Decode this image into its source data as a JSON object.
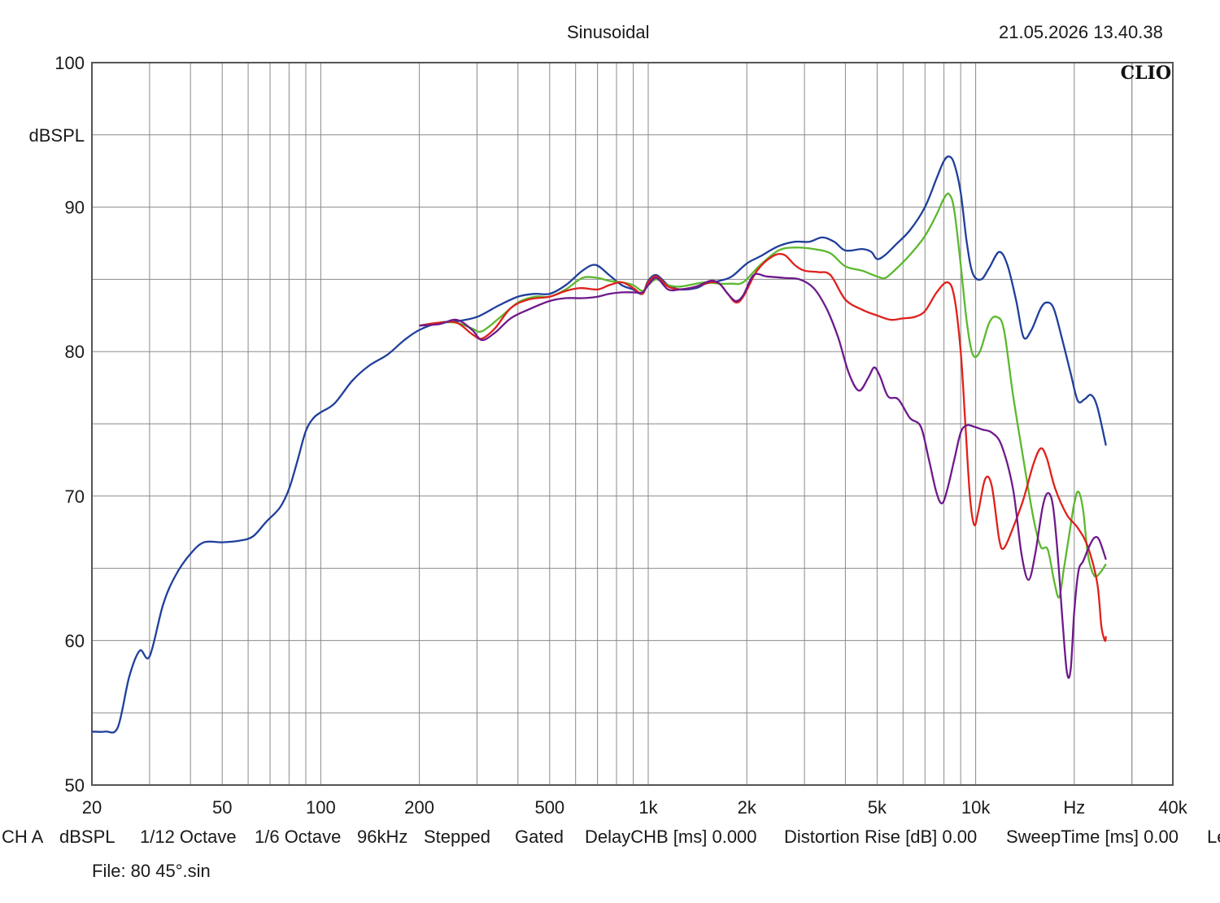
{
  "header": {
    "title": "Sinusoidal",
    "timestamp": "21.05.2026 13.40.38",
    "logo": "CLIO"
  },
  "status_bar": {
    "items": [
      "CH A",
      "dBSPL",
      "1/12 Octave",
      "1/6 Octave",
      "96kHz",
      "Stepped",
      "Gated",
      "DelayCHB [ms] 0.000",
      "Distortion Rise [dB] 0.00",
      "SweepTime [ms] 0.00",
      "Le"
    ]
  },
  "file_label": "File: 80 45°.sin",
  "colors": {
    "background": "#ffffff",
    "grid": "#8a8a8a",
    "axis": "#555555",
    "blue": "#1f3f9a",
    "green": "#5cb82e",
    "red": "#e0201b",
    "purple": "#6e1a8c"
  },
  "chart_data": {
    "type": "line",
    "title": "Sinusoidal",
    "xlabel": "Hz",
    "ylabel": "dBSPL",
    "x_scale": "log",
    "xlim": [
      20,
      40000
    ],
    "ylim": [
      50,
      100
    ],
    "grid": true,
    "x_ticks": [
      {
        "value": 20,
        "label": "20"
      },
      {
        "value": 50,
        "label": "50"
      },
      {
        "value": 100,
        "label": "100"
      },
      {
        "value": 200,
        "label": "200"
      },
      {
        "value": 500,
        "label": "500"
      },
      {
        "value": 1000,
        "label": "1k"
      },
      {
        "value": 2000,
        "label": "2k"
      },
      {
        "value": 5000,
        "label": "5k"
      },
      {
        "value": 10000,
        "label": "10k"
      },
      {
        "value": 20000,
        "label": "Hz"
      },
      {
        "value": 40000,
        "label": "40k"
      }
    ],
    "y_ticks": [
      {
        "value": 100,
        "label": "100"
      },
      {
        "value": 95,
        "label": "dBSPL"
      },
      {
        "value": 90,
        "label": "90"
      },
      {
        "value": 80,
        "label": "80"
      },
      {
        "value": 70,
        "label": "70"
      },
      {
        "value": 60,
        "label": "60"
      },
      {
        "value": 50,
        "label": "50"
      }
    ],
    "series": [
      {
        "color": "blue",
        "points": [
          [
            20,
            53.7
          ],
          [
            22,
            53.7
          ],
          [
            24,
            54
          ],
          [
            26,
            57.5
          ],
          [
            28,
            59.3
          ],
          [
            30,
            58.9
          ],
          [
            33,
            62.5
          ],
          [
            36,
            64.5
          ],
          [
            40,
            66
          ],
          [
            44,
            66.8
          ],
          [
            50,
            66.8
          ],
          [
            56,
            66.9
          ],
          [
            62,
            67.2
          ],
          [
            68,
            68.2
          ],
          [
            75,
            69.2
          ],
          [
            80,
            70.5
          ],
          [
            85,
            72.5
          ],
          [
            90,
            74.5
          ],
          [
            95,
            75.4
          ],
          [
            100,
            75.8
          ],
          [
            110,
            76.4
          ],
          [
            125,
            78
          ],
          [
            140,
            79
          ],
          [
            160,
            79.8
          ],
          [
            180,
            80.8
          ],
          [
            200,
            81.5
          ],
          [
            230,
            82
          ],
          [
            260,
            82.1
          ],
          [
            300,
            82.4
          ],
          [
            350,
            83.2
          ],
          [
            400,
            83.8
          ],
          [
            450,
            84
          ],
          [
            500,
            84
          ],
          [
            560,
            84.6
          ],
          [
            630,
            85.6
          ],
          [
            690,
            86
          ],
          [
            760,
            85.3
          ],
          [
            830,
            84.6
          ],
          [
            900,
            84.3
          ],
          [
            960,
            84
          ],
          [
            1000,
            84.9
          ],
          [
            1060,
            85.3
          ],
          [
            1150,
            84.6
          ],
          [
            1250,
            84.3
          ],
          [
            1400,
            84.4
          ],
          [
            1500,
            84.7
          ],
          [
            1650,
            84.9
          ],
          [
            1800,
            85.2
          ],
          [
            2000,
            86.1
          ],
          [
            2200,
            86.6
          ],
          [
            2500,
            87.3
          ],
          [
            2800,
            87.6
          ],
          [
            3100,
            87.6
          ],
          [
            3400,
            87.9
          ],
          [
            3700,
            87.6
          ],
          [
            4000,
            87
          ],
          [
            4500,
            87.1
          ],
          [
            4800,
            86.9
          ],
          [
            5000,
            86.4
          ],
          [
            5300,
            86.7
          ],
          [
            5700,
            87.4
          ],
          [
            6300,
            88.4
          ],
          [
            7000,
            90
          ],
          [
            7600,
            92
          ],
          [
            8000,
            93.2
          ],
          [
            8300,
            93.5
          ],
          [
            8600,
            93
          ],
          [
            9000,
            91
          ],
          [
            9400,
            87.5
          ],
          [
            9800,
            85.4
          ],
          [
            10400,
            85
          ],
          [
            11000,
            85.8
          ],
          [
            11800,
            86.9
          ],
          [
            12500,
            86
          ],
          [
            13300,
            83.5
          ],
          [
            14000,
            81
          ],
          [
            14800,
            81.5
          ],
          [
            15800,
            83
          ],
          [
            16500,
            83.4
          ],
          [
            17300,
            83
          ],
          [
            18300,
            81
          ],
          [
            19500,
            78.5
          ],
          [
            20500,
            76.6
          ],
          [
            21500,
            76.7
          ],
          [
            22500,
            77
          ],
          [
            23500,
            76.2
          ],
          [
            25000,
            73.5
          ]
        ]
      },
      {
        "color": "green",
        "points": [
          [
            200,
            81.8
          ],
          [
            230,
            82
          ],
          [
            260,
            82
          ],
          [
            290,
            81.6
          ],
          [
            310,
            81.4
          ],
          [
            350,
            82.3
          ],
          [
            400,
            83.4
          ],
          [
            450,
            83.8
          ],
          [
            500,
            83.8
          ],
          [
            560,
            84.3
          ],
          [
            630,
            85.1
          ],
          [
            700,
            85.1
          ],
          [
            760,
            84.9
          ],
          [
            830,
            84.8
          ],
          [
            900,
            84.6
          ],
          [
            960,
            84.2
          ],
          [
            1000,
            84.6
          ],
          [
            1060,
            85
          ],
          [
            1150,
            84.6
          ],
          [
            1250,
            84.5
          ],
          [
            1400,
            84.7
          ],
          [
            1500,
            84.8
          ],
          [
            1650,
            84.7
          ],
          [
            1800,
            84.7
          ],
          [
            1950,
            84.8
          ],
          [
            2200,
            86
          ],
          [
            2500,
            87
          ],
          [
            2800,
            87.2
          ],
          [
            3200,
            87.1
          ],
          [
            3600,
            86.8
          ],
          [
            4000,
            85.9
          ],
          [
            4500,
            85.6
          ],
          [
            5000,
            85.2
          ],
          [
            5300,
            85.1
          ],
          [
            5700,
            85.7
          ],
          [
            6300,
            86.7
          ],
          [
            7000,
            88
          ],
          [
            7600,
            89.5
          ],
          [
            8000,
            90.6
          ],
          [
            8300,
            90.9
          ],
          [
            8600,
            89.8
          ],
          [
            9000,
            86
          ],
          [
            9400,
            82
          ],
          [
            9800,
            79.8
          ],
          [
            10300,
            80
          ],
          [
            11000,
            82
          ],
          [
            11600,
            82.4
          ],
          [
            12200,
            81.5
          ],
          [
            13000,
            77
          ],
          [
            14000,
            72.5
          ],
          [
            15000,
            68.5
          ],
          [
            15800,
            66.5
          ],
          [
            16600,
            66.3
          ],
          [
            17400,
            64
          ],
          [
            18000,
            63
          ],
          [
            18600,
            65
          ],
          [
            19200,
            67
          ],
          [
            20000,
            69.5
          ],
          [
            20600,
            70.3
          ],
          [
            21300,
            69
          ],
          [
            22000,
            66
          ],
          [
            23000,
            64.5
          ],
          [
            24000,
            64.7
          ],
          [
            25000,
            65.3
          ]
        ]
      },
      {
        "color": "red",
        "points": [
          [
            200,
            81.8
          ],
          [
            230,
            82
          ],
          [
            260,
            82
          ],
          [
            290,
            81.2
          ],
          [
            310,
            80.9
          ],
          [
            340,
            81.6
          ],
          [
            380,
            83
          ],
          [
            430,
            83.6
          ],
          [
            500,
            83.8
          ],
          [
            560,
            84.2
          ],
          [
            620,
            84.4
          ],
          [
            700,
            84.3
          ],
          [
            760,
            84.6
          ],
          [
            830,
            84.8
          ],
          [
            900,
            84.4
          ],
          [
            960,
            84
          ],
          [
            1000,
            84.8
          ],
          [
            1060,
            85.2
          ],
          [
            1150,
            84.5
          ],
          [
            1250,
            84.3
          ],
          [
            1400,
            84.5
          ],
          [
            1550,
            84.8
          ],
          [
            1650,
            84.7
          ],
          [
            1750,
            84
          ],
          [
            1850,
            83.4
          ],
          [
            1950,
            83.8
          ],
          [
            2150,
            85.6
          ],
          [
            2400,
            86.6
          ],
          [
            2600,
            86.7
          ],
          [
            2800,
            86
          ],
          [
            3000,
            85.6
          ],
          [
            3300,
            85.5
          ],
          [
            3600,
            85.3
          ],
          [
            4000,
            83.6
          ],
          [
            4500,
            82.9
          ],
          [
            5000,
            82.5
          ],
          [
            5500,
            82.2
          ],
          [
            6000,
            82.3
          ],
          [
            6500,
            82.4
          ],
          [
            7000,
            82.8
          ],
          [
            7600,
            84.1
          ],
          [
            8200,
            84.8
          ],
          [
            8600,
            83.8
          ],
          [
            9000,
            80
          ],
          [
            9300,
            75
          ],
          [
            9600,
            70
          ],
          [
            9900,
            68
          ],
          [
            10200,
            69
          ],
          [
            10700,
            71.2
          ],
          [
            11200,
            70.7
          ],
          [
            11800,
            67
          ],
          [
            12200,
            66.4
          ],
          [
            13000,
            67.8
          ],
          [
            14000,
            69.8
          ],
          [
            15000,
            72.2
          ],
          [
            15800,
            73.3
          ],
          [
            16500,
            72.6
          ],
          [
            17500,
            70.5
          ],
          [
            19000,
            68.7
          ],
          [
            20500,
            67.8
          ],
          [
            22000,
            66.5
          ],
          [
            23500,
            64
          ],
          [
            24200,
            61
          ],
          [
            24800,
            60
          ],
          [
            25000,
            60.3
          ]
        ]
      },
      {
        "color": "purple",
        "points": [
          [
            200,
            81.8
          ],
          [
            230,
            81.9
          ],
          [
            260,
            82.2
          ],
          [
            290,
            81.5
          ],
          [
            310,
            80.8
          ],
          [
            340,
            81.3
          ],
          [
            380,
            82.3
          ],
          [
            430,
            82.9
          ],
          [
            500,
            83.5
          ],
          [
            560,
            83.7
          ],
          [
            630,
            83.7
          ],
          [
            700,
            83.8
          ],
          [
            760,
            84
          ],
          [
            830,
            84.1
          ],
          [
            900,
            84.1
          ],
          [
            960,
            84.1
          ],
          [
            1000,
            84.6
          ],
          [
            1060,
            85.1
          ],
          [
            1150,
            84.3
          ],
          [
            1250,
            84.3
          ],
          [
            1400,
            84.5
          ],
          [
            1550,
            84.9
          ],
          [
            1650,
            84.7
          ],
          [
            1750,
            84
          ],
          [
            1850,
            83.5
          ],
          [
            1950,
            83.9
          ],
          [
            2100,
            85.3
          ],
          [
            2300,
            85.2
          ],
          [
            2600,
            85.1
          ],
          [
            2900,
            85
          ],
          [
            3200,
            84.4
          ],
          [
            3500,
            83
          ],
          [
            3800,
            81
          ],
          [
            4100,
            78.5
          ],
          [
            4400,
            77.3
          ],
          [
            4700,
            78.2
          ],
          [
            4900,
            78.9
          ],
          [
            5100,
            78.3
          ],
          [
            5400,
            76.9
          ],
          [
            5800,
            76.7
          ],
          [
            6300,
            75.4
          ],
          [
            6800,
            74.8
          ],
          [
            7200,
            72.5
          ],
          [
            7600,
            70.2
          ],
          [
            7900,
            69.5
          ],
          [
            8200,
            70.5
          ],
          [
            8600,
            72.5
          ],
          [
            9000,
            74.4
          ],
          [
            9400,
            74.9
          ],
          [
            9900,
            74.8
          ],
          [
            10500,
            74.6
          ],
          [
            11200,
            74.4
          ],
          [
            12000,
            73.5
          ],
          [
            13000,
            70.5
          ],
          [
            13800,
            66
          ],
          [
            14500,
            64.2
          ],
          [
            15200,
            66
          ],
          [
            16000,
            69.2
          ],
          [
            16600,
            70.2
          ],
          [
            17200,
            69.4
          ],
          [
            17800,
            66
          ],
          [
            18400,
            61.5
          ],
          [
            19000,
            57.8
          ],
          [
            19500,
            58
          ],
          [
            20000,
            62
          ],
          [
            20600,
            64.8
          ],
          [
            21300,
            65.5
          ],
          [
            22200,
            66.5
          ],
          [
            23000,
            67.1
          ],
          [
            23800,
            67
          ],
          [
            25000,
            65.6
          ]
        ]
      }
    ]
  }
}
